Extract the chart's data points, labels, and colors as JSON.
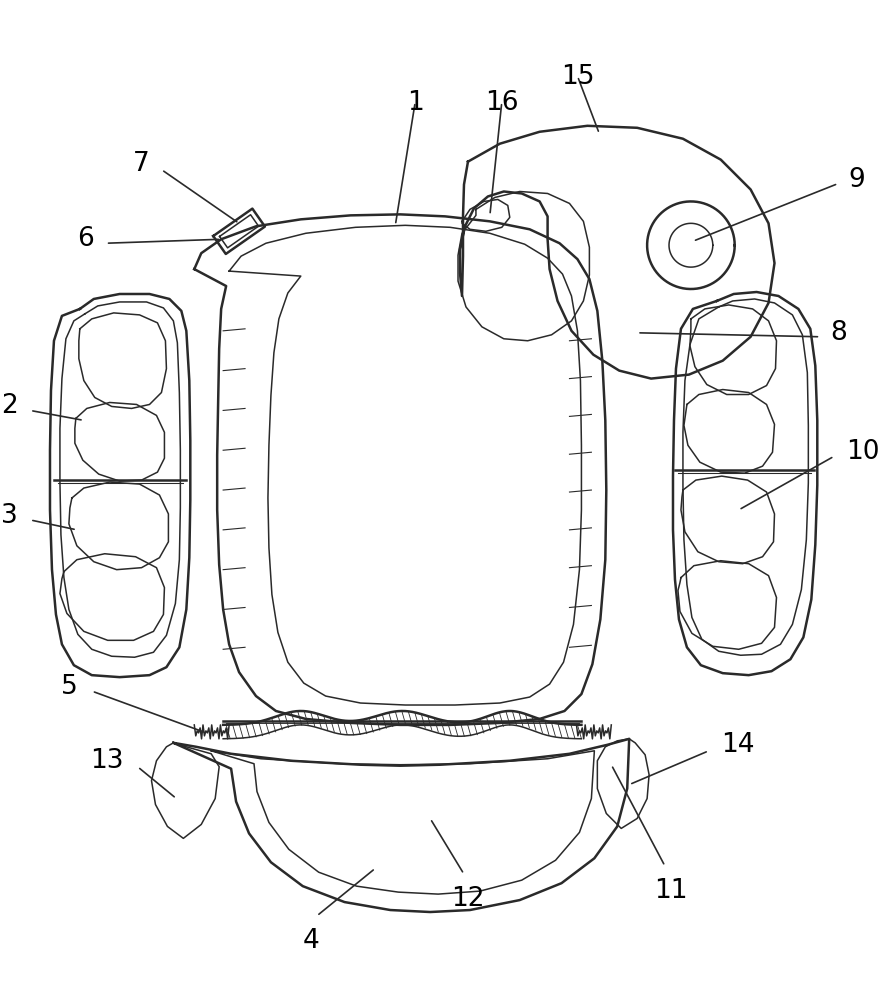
{
  "bg_color": "#ffffff",
  "line_color": "#2a2a2a",
  "label_color": "#000000",
  "label_fontsize": 19
}
